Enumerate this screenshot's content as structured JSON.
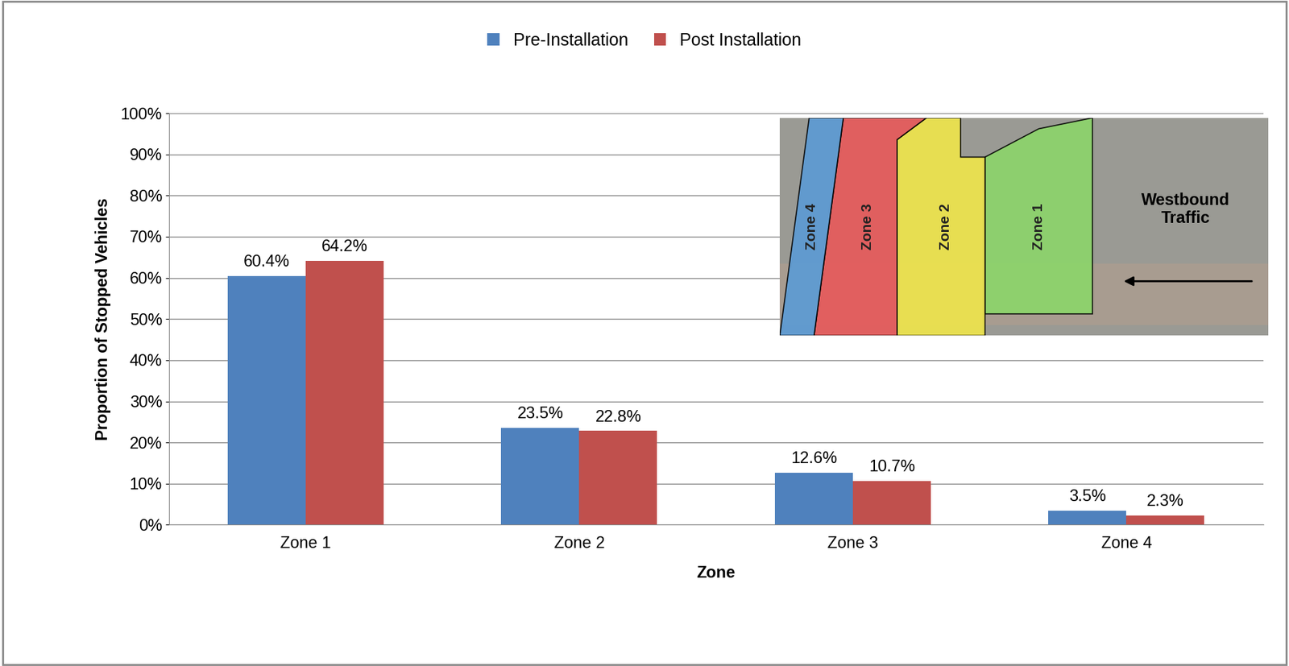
{
  "chart_data": {
    "type": "bar",
    "x_label": "Zone",
    "y_label": "Proportion of Stopped Vehicles",
    "categories": [
      "Zone 1",
      "Zone 2",
      "Zone 3",
      "Zone 4"
    ],
    "series": [
      {
        "name": "Pre-Installation",
        "color": "#4f81bd",
        "values": [
          60.4,
          23.5,
          12.6,
          3.5
        ],
        "value_labels": [
          "60.4%",
          "23.5%",
          "12.6%",
          "3.5%"
        ]
      },
      {
        "name": "Post Installation",
        "color": "#c0504d",
        "values": [
          64.2,
          22.8,
          10.7,
          2.3
        ],
        "value_labels": [
          "64.2%",
          "22.8%",
          "10.7%",
          "2.3%"
        ]
      }
    ],
    "ylim": [
      0,
      100
    ],
    "yticks": [
      {
        "value": 0,
        "label": "0%"
      },
      {
        "value": 10,
        "label": "10%"
      },
      {
        "value": 20,
        "label": "20%"
      },
      {
        "value": 30,
        "label": "30%"
      },
      {
        "value": 40,
        "label": "40%"
      },
      {
        "value": 50,
        "label": "50%"
      },
      {
        "value": 60,
        "label": "60%"
      },
      {
        "value": 70,
        "label": "70%"
      },
      {
        "value": 80,
        "label": "80%"
      },
      {
        "value": 90,
        "label": "90%"
      },
      {
        "value": 100,
        "label": "100%"
      }
    ],
    "grid": true,
    "legend": "upper center",
    "data_labels": true,
    "annotations": [
      "Westbound\nTraffic"
    ]
  }
}
